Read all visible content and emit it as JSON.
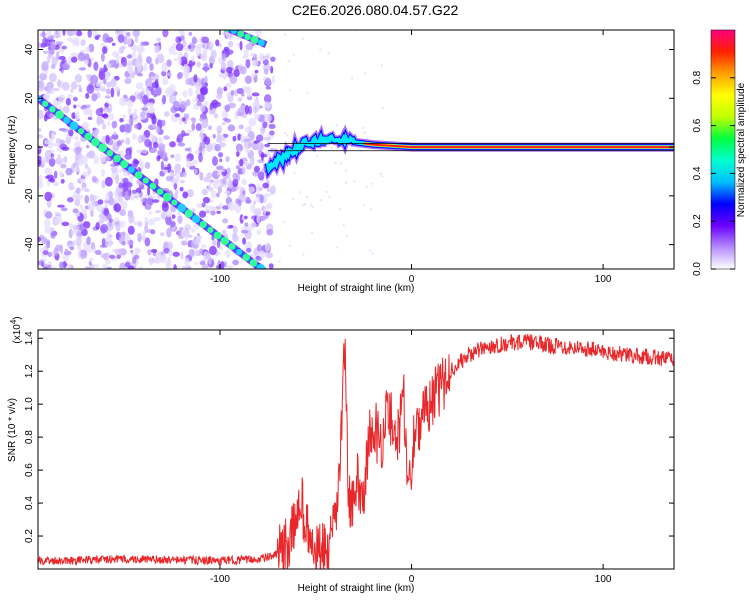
{
  "title": "C2E6.2026.080.04.57.G22",
  "chart_data": [
    {
      "type": "heatmap",
      "xlabel": "Height of straight line (km)",
      "ylabel": "Frequency (Hz)",
      "xlim": [
        -195,
        137
      ],
      "ylim": [
        -50,
        48
      ],
      "x_ticks": [
        -100,
        0,
        100
      ],
      "y_ticks": [
        -40,
        -20,
        0,
        20,
        40
      ],
      "colorbar": {
        "label": "Normalized spectral amplitude",
        "range": [
          0,
          1
        ],
        "ticks": [
          0.0,
          0.2,
          0.4,
          0.6,
          0.8
        ],
        "colors": [
          "#ffffff",
          "#b48cff",
          "#6a00ff",
          "#0000ff",
          "#00bfff",
          "#00ffd0",
          "#00ff40",
          "#c0ff00",
          "#ffff00",
          "#ffa000",
          "#ff2000",
          "#ff0080"
        ]
      },
      "ridges": [
        {
          "name": "",
          "x": [
            -195,
            -75
          ],
          "y": [
            20,
            -52
          ]
        },
        {
          "name": "",
          "x": [
            -100,
            -76
          ],
          "y": [
            50,
            42
          ]
        },
        {
          "name": "",
          "x": [
            -75,
            -55,
            -40,
            -20,
            0,
            137
          ],
          "y": [
            -8,
            2,
            3,
            1,
            0,
            0
          ]
        }
      ]
    },
    {
      "type": "line",
      "xlabel": "Height of straight line (km)",
      "ylabel": "SNR (10 * v/v)",
      "scale_note": "(x10",
      "scale_exp": "4",
      "scale_close": ")",
      "xlim": [
        -195,
        137
      ],
      "ylim": [
        0,
        1.45
      ],
      "x_ticks": [
        -100,
        0,
        100
      ],
      "y_ticks": [
        0.2,
        0.4,
        0.6,
        0.8,
        1.0,
        1.2,
        1.4
      ],
      "series": [
        {
          "name": "",
          "color": "#e8272a",
          "x": [
            -195,
            -150,
            -100,
            -80,
            -72,
            -66,
            -62,
            -58,
            -55,
            -52,
            -49,
            -46,
            -43,
            -40,
            -37,
            -35,
            -33,
            -31,
            -28,
            -25,
            -22,
            -19,
            -16,
            -13,
            -10,
            -7,
            -4,
            -2,
            0,
            2,
            5,
            8,
            12,
            16,
            20,
            25,
            30,
            40,
            50,
            60,
            70,
            80,
            90,
            100,
            110,
            120,
            130,
            137
          ],
          "y": [
            0.05,
            0.06,
            0.05,
            0.06,
            0.08,
            0.12,
            0.22,
            0.45,
            0.25,
            0.12,
            0.1,
            0.1,
            0.12,
            0.25,
            0.7,
            1.4,
            0.5,
            0.35,
            0.55,
            0.45,
            0.8,
            0.85,
            0.75,
            0.95,
            0.9,
            0.8,
            1.05,
            0.5,
            0.6,
            0.95,
            0.85,
            1.0,
            1.05,
            1.1,
            1.2,
            1.25,
            1.3,
            1.35,
            1.37,
            1.38,
            1.36,
            1.35,
            1.34,
            1.32,
            1.3,
            1.29,
            1.28,
            1.27
          ]
        }
      ]
    }
  ]
}
